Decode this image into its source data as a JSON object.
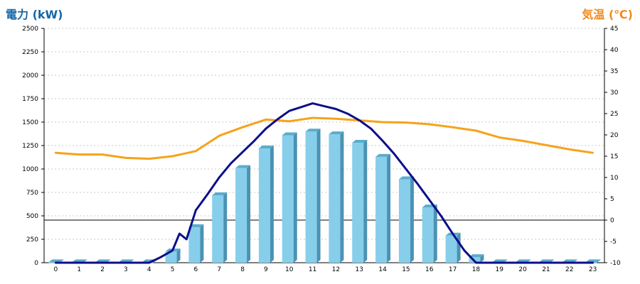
{
  "chart_data": {
    "type": "bar",
    "title_left": "電力 (kW)",
    "title_right": "気温 (℃)",
    "colors": {
      "left_title": "#1565a8",
      "right_title": "#ef8a1f",
      "bar_face": "#87ceeb",
      "bar_side": "#4b92b3",
      "bar_top": "#5aaccc",
      "temperature_line": "#f7a21a",
      "power_line": "#0d0d8a",
      "grid": "#c8c8c8"
    },
    "x": [
      0,
      1,
      2,
      3,
      4,
      5,
      6,
      7,
      8,
      9,
      10,
      11,
      12,
      13,
      14,
      15,
      16,
      17,
      18,
      19,
      20,
      21,
      22,
      23
    ],
    "x_tick_labels": [
      "0",
      "1",
      "2",
      "3",
      "4",
      "5",
      "6",
      "7",
      "8",
      "9",
      "10",
      "11",
      "12",
      "13",
      "14",
      "15",
      "16",
      "17",
      "18",
      "19",
      "20",
      "21",
      "22",
      "23"
    ],
    "y_left": {
      "ylim": [
        0,
        2500
      ],
      "tick_labels": [
        "0",
        "250",
        "500",
        "750",
        "1000",
        "1250",
        "1500",
        "1750",
        "2000",
        "2250",
        "2500"
      ]
    },
    "y_right": {
      "ylim": [
        -10,
        45
      ],
      "tick_labels": [
        "-10",
        "-5",
        "0",
        "5",
        "10",
        "15",
        "20",
        "25",
        "30",
        "35",
        "40",
        "45"
      ]
    },
    "grid": true,
    "series": [
      {
        "kind": "bar",
        "axis": "left",
        "values": [
          5,
          5,
          5,
          5,
          5,
          120,
          380,
          720,
          1010,
          1220,
          1360,
          1400,
          1370,
          1280,
          1130,
          890,
          590,
          290,
          60,
          5,
          5,
          5,
          5,
          5
        ]
      },
      {
        "kind": "line",
        "axis": "right",
        "values": [
          15.8,
          15.4,
          15.4,
          14.6,
          14.4,
          15.0,
          16.2,
          19.8,
          21.8,
          23.6,
          23.2,
          24.0,
          23.8,
          23.4,
          23.0,
          22.9,
          22.5,
          21.8,
          21.0,
          19.4,
          18.6,
          17.6,
          16.6,
          15.8
        ]
      },
      {
        "kind": "line",
        "axis": "left",
        "x": [
          0,
          1,
          2,
          3,
          4,
          4.5,
          5,
          5.3,
          5.6,
          6,
          6.5,
          7,
          7.5,
          8,
          8.5,
          9,
          9.5,
          10,
          10.5,
          11,
          11.5,
          12,
          12.5,
          13,
          13.5,
          14,
          14.5,
          15,
          15.5,
          16,
          16.5,
          17,
          17.5,
          18,
          18.5,
          19,
          20,
          21,
          22,
          23
        ],
        "values": [
          0,
          0,
          0,
          0,
          0,
          60,
          130,
          310,
          250,
          560,
          730,
          910,
          1060,
          1180,
          1300,
          1430,
          1530,
          1620,
          1660,
          1700,
          1670,
          1640,
          1590,
          1520,
          1430,
          1300,
          1160,
          1000,
          840,
          670,
          500,
          310,
          130,
          0,
          0,
          0,
          0,
          0,
          0,
          0
        ]
      }
    ]
  }
}
